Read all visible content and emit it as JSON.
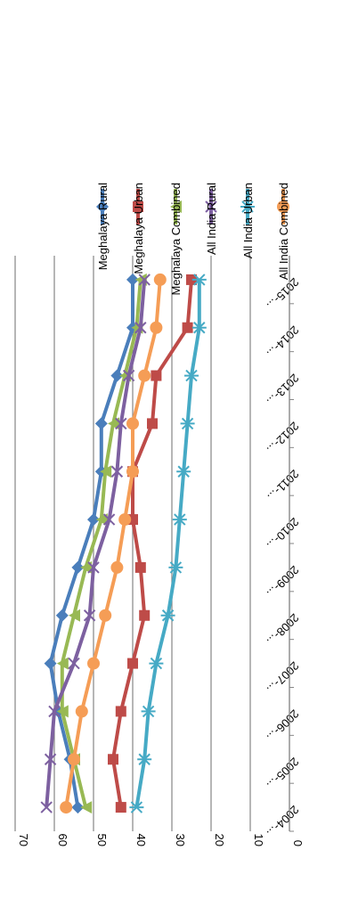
{
  "chart_data": {
    "type": "line",
    "title": "",
    "xlabel": "",
    "ylabel": "",
    "categories": [
      "2004-...",
      "2005-...",
      "2006-...",
      "2007-...",
      "2008-...",
      "2009-...",
      "2010-...",
      "2011-...",
      "2012-...",
      "2013-...",
      "2014-...",
      "2015-..."
    ],
    "ylim": [
      0,
      70
    ],
    "yticks": [
      "0",
      "10",
      "20",
      "30",
      "40",
      "50",
      "60",
      "70"
    ],
    "grid": true,
    "legend_position": "right",
    "orientation": "rotated 90 degrees clockwise",
    "series": [
      {
        "name": "Meghalaya Rural",
        "color": "#4A7EBB",
        "marker": "diamond",
        "values": [
          54,
          56,
          59,
          61,
          58,
          54,
          50,
          48,
          48,
          44,
          40,
          40
        ]
      },
      {
        "name": "Meghalaya Urban",
        "color": "#BE4B48",
        "marker": "square",
        "values": [
          43,
          45,
          43,
          40,
          37,
          38,
          40,
          40,
          35,
          34,
          26,
          25
        ]
      },
      {
        "name": "Meghalaya Combined",
        "color": "#98B954",
        "marker": "triangle",
        "values": [
          52,
          55,
          58,
          58,
          55,
          52,
          48,
          47,
          45,
          42,
          39,
          38
        ]
      },
      {
        "name": "All India Rural",
        "color": "#7D60A0",
        "marker": "x",
        "values": [
          62,
          61,
          60,
          55,
          51,
          50,
          46,
          44,
          43,
          41,
          38,
          37
        ]
      },
      {
        "name": "All India Urban",
        "color": "#46AAC5",
        "marker": "star",
        "values": [
          39,
          37,
          36,
          34,
          31,
          29,
          28,
          27,
          26,
          25,
          23,
          23
        ]
      },
      {
        "name": "All India Combined",
        "color": "#F59D56",
        "marker": "circle",
        "values": [
          57,
          55,
          53,
          50,
          47,
          44,
          42,
          40,
          40,
          37,
          34,
          33
        ]
      }
    ]
  }
}
